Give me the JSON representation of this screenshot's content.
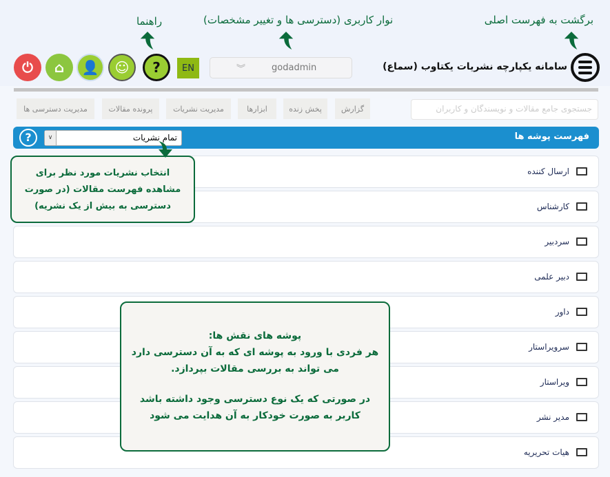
{
  "annotations": {
    "back_to_menu": "برگشت به فهرست اصلی",
    "user_bar": "نوار کاربری (دسترسی ها و تغییر مشخصات)",
    "help": "راهنما"
  },
  "header": {
    "title": "سامانه یکپارچه نشریات یکتاوب (سماع)",
    "username": "godadmin",
    "lang": "EN"
  },
  "search": {
    "placeholder": "جستجوی جامع مقالات و نویسندگان و کاربران"
  },
  "nav": [
    "گزارش",
    "پخش زنده",
    "ابزارها",
    "مدیریت نشریات",
    "پرونده مقالات",
    "مدیریت دسترسی ها"
  ],
  "panel": {
    "title": "فهرست پوشه ها",
    "select_value": "تمام نشریات"
  },
  "folders": [
    "ارسال کننده",
    "کارشناس",
    "سردبیر",
    "دبیر علمی",
    "داور",
    "سرویراستار",
    "ویراستار",
    "مدیر نشر",
    "هیات تحریریه"
  ],
  "tip1": {
    "text": "انتخاب نشریات مورد نظر برای مشاهده فهرست مقالات (در صورت دسترسی به بیش از یک نشریه)"
  },
  "tip2": {
    "title": "پوشه های نقش ها:",
    "line1": "هر فردی با ورود به پوشه ای که به آن دسترسی دارد می تواند به بررسی مقالات بپردازد.",
    "line2": "در صورتی که یک نوع دسترسی وجود داشته باشد کاربر به صورت خودکار به آن هدایت می شود"
  },
  "colors": {
    "accent": "#1b8fcf",
    "annotation": "#0b6b3b",
    "lang": "#8fb913",
    "power": "#e84c4c",
    "green": "#8cc63f"
  }
}
